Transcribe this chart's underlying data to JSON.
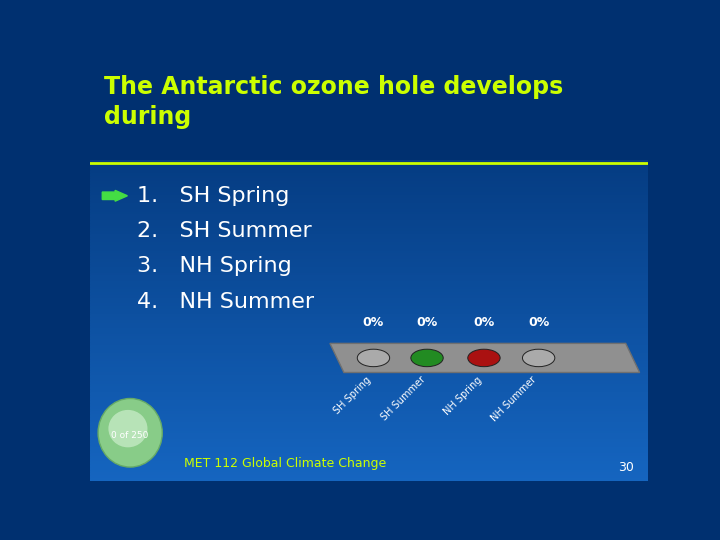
{
  "title_line1": "The Antarctic ozone hole develops",
  "title_line2": "during",
  "title_color": "#CCFF00",
  "title_fontsize": 17,
  "bg_color_top": "#003070",
  "bg_color_bottom": "#1565C0",
  "separator_color": "#CCFF00",
  "items": [
    "SH Spring",
    "SH Summer",
    "NH Spring",
    "NH Summer"
  ],
  "item_numbers": [
    "1.",
    "2.",
    "3.",
    "4."
  ],
  "item_color": "#FFFFFF",
  "item_fontsize": 16,
  "arrow_color": "#44DD44",
  "bar_labels": [
    "SH Spring",
    "SH Summer",
    "NH Spring",
    "NH Summer"
  ],
  "bar_dot_colors": [
    "#AAAAAA",
    "#228B22",
    "#AA1111",
    "#AAAAAA"
  ],
  "percent_labels": [
    "0%",
    "0%",
    "0%",
    "0%"
  ],
  "percent_color": "#FFFFFF",
  "footer_text": "MET 112 Global Climate Change",
  "footer_color": "#CCFF00",
  "page_number": "30",
  "page_color": "#FFFFFF",
  "counter_text": "0 of 250",
  "counter_color": "#FFFFFF",
  "bar_face_color": "#909090",
  "bar_edge_color": "#707070"
}
